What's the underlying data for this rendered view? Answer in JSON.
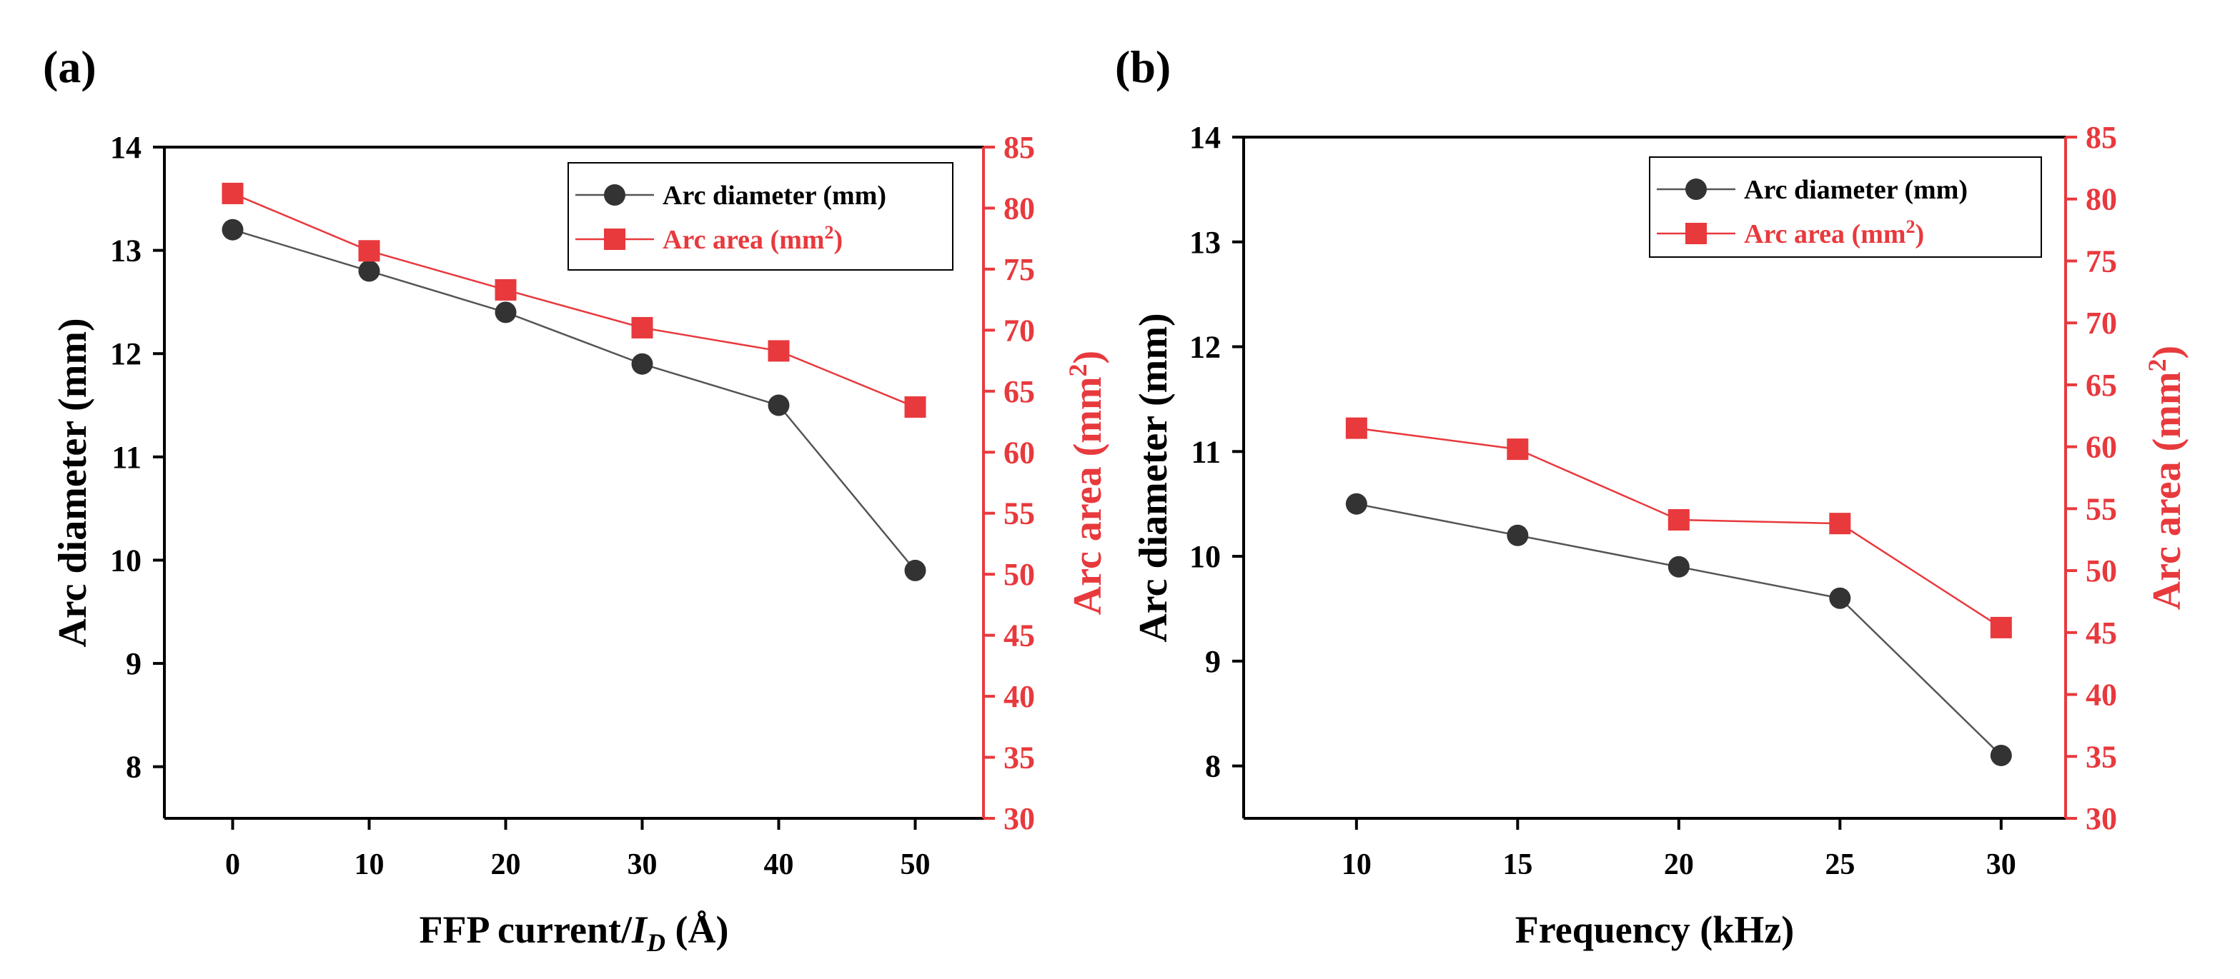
{
  "colors": {
    "axis": "#000000",
    "diameter_series": "#333333",
    "area_series": "#e8393d",
    "diameter_line": "#555555"
  },
  "chart_data": [
    {
      "panel_label": "(a)",
      "type": "line",
      "x": [
        0,
        10,
        20,
        30,
        40,
        50
      ],
      "xlim": [
        -5,
        55
      ],
      "xticks": [
        "0",
        "10",
        "20",
        "30",
        "40",
        "50"
      ],
      "xlabel_prefix": "FFP current/",
      "xlabel_var": "I",
      "xlabel_sub": "D",
      "xlabel_suffix": " (Å)",
      "ylabel_left": "Arc diameter (mm)",
      "ylim_left": [
        7.5,
        14
      ],
      "yticks_left": [
        "8",
        "9",
        "10",
        "11",
        "12",
        "13",
        "14"
      ],
      "ylabel_right_prefix": "Arc area (mm",
      "ylabel_right_sup": "2",
      "ylabel_right_suffix": ")",
      "ylim_right": [
        30,
        85
      ],
      "yticks_right": [
        "30",
        "35",
        "40",
        "45",
        "50",
        "55",
        "60",
        "65",
        "70",
        "75",
        "80",
        "85"
      ],
      "legend_position": "top-right",
      "series": [
        {
          "name": "Arc diameter (mm)",
          "name_prefix": "Arc diameter (mm)",
          "name_sup": "",
          "name_suffix": "",
          "axis": "left",
          "marker": "circle",
          "values": [
            13.2,
            12.8,
            12.4,
            11.9,
            11.5,
            9.9
          ]
        },
        {
          "name": "Arc area (mm2)",
          "name_prefix": "Arc area (mm",
          "name_sup": "2",
          "name_suffix": ")",
          "axis": "right",
          "marker": "square",
          "values": [
            81.2,
            76.5,
            73.3,
            70.2,
            68.3,
            63.7
          ]
        }
      ]
    },
    {
      "panel_label": "(b)",
      "type": "line",
      "x": [
        10,
        15,
        20,
        25,
        30
      ],
      "xlim": [
        6.5,
        32
      ],
      "xticks": [
        "10",
        "15",
        "20",
        "25",
        "30"
      ],
      "xlabel_prefix": "Frequency (kHz)",
      "xlabel_var": "",
      "xlabel_sub": "",
      "xlabel_suffix": "",
      "ylabel_left": "Arc diameter (mm)",
      "ylim_left": [
        7.5,
        14
      ],
      "yticks_left": [
        "8",
        "9",
        "10",
        "11",
        "12",
        "13",
        "14"
      ],
      "ylabel_right_prefix": "Arc area (mm",
      "ylabel_right_sup": "2",
      "ylabel_right_suffix": ")",
      "ylim_right": [
        30,
        85
      ],
      "yticks_right": [
        "30",
        "35",
        "40",
        "45",
        "50",
        "55",
        "60",
        "65",
        "70",
        "75",
        "80",
        "85"
      ],
      "legend_position": "top-right",
      "series": [
        {
          "name": "Arc diameter (mm)",
          "name_prefix": "Arc diameter (mm)",
          "name_sup": "",
          "name_suffix": "",
          "axis": "left",
          "marker": "circle",
          "values": [
            10.5,
            10.2,
            9.9,
            9.6,
            8.1
          ]
        },
        {
          "name": "Arc area (mm2)",
          "name_prefix": "Arc area (mm",
          "name_sup": "2",
          "name_suffix": ")",
          "axis": "right",
          "marker": "square",
          "values": [
            61.5,
            59.8,
            54.1,
            53.8,
            45.4
          ]
        }
      ]
    }
  ]
}
